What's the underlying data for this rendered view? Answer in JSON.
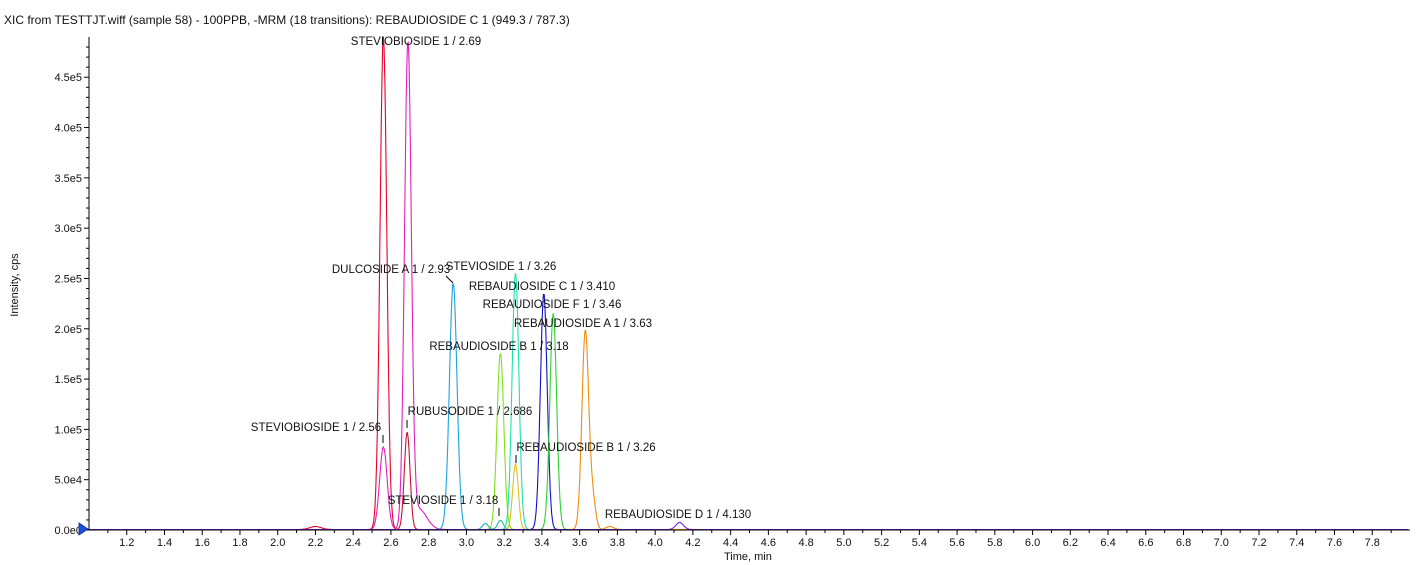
{
  "title": "XIC from TESTTJT.wiff (sample 58) - 100PPB, -MRM (18 transitions): REBAUDIOSIDE C 1 (949.3 / 787.3)",
  "chart_data": {
    "type": "line",
    "xlabel": "Time, min",
    "ylabel": "Intensity, cps",
    "xlim": [
      1.0,
      8.0
    ],
    "ylim": [
      0,
      490000
    ],
    "x_ticks": [
      "1.2",
      "1.4",
      "1.6",
      "1.8",
      "2.0",
      "2.2",
      "2.4",
      "2.6",
      "2.8",
      "3.0",
      "3.2",
      "3.4",
      "3.6",
      "3.8",
      "4.0",
      "4.2",
      "4.4",
      "4.6",
      "4.8",
      "5.0",
      "5.2",
      "5.4",
      "5.6",
      "5.8",
      "6.0",
      "6.2",
      "6.4",
      "6.6",
      "6.8",
      "7.0",
      "7.2",
      "7.4",
      "7.6",
      "7.8"
    ],
    "y_ticks": [
      {
        "value": 0,
        "label": "0.0e0"
      },
      {
        "value": 50000,
        "label": "5.0e4"
      },
      {
        "value": 100000,
        "label": "1.0e5"
      },
      {
        "value": 150000,
        "label": "1.5e5"
      },
      {
        "value": 200000,
        "label": "2.0e5"
      },
      {
        "value": 250000,
        "label": "2.5e5"
      },
      {
        "value": 300000,
        "label": "3.0e5"
      },
      {
        "value": 350000,
        "label": "3.5e5"
      },
      {
        "value": 400000,
        "label": "4.0e5"
      },
      {
        "value": 450000,
        "label": "4.5e5"
      }
    ],
    "grid": false,
    "series": [
      {
        "color": "#e8002a",
        "peaks": [
          {
            "rt": 2.56,
            "height": 490000,
            "width": 0.018
          },
          {
            "rt": 2.2,
            "height": 3000,
            "width": 0.03
          }
        ]
      },
      {
        "color": "#e020c0",
        "peaks": [
          {
            "rt": 2.69,
            "height": 480000,
            "width": 0.018
          },
          {
            "rt": 2.56,
            "height": 82000,
            "width": 0.02
          },
          {
            "rt": 2.75,
            "height": 20000,
            "width": 0.04
          }
        ]
      },
      {
        "color": "#c8102e",
        "peaks": [
          {
            "rt": 2.686,
            "height": 97000,
            "width": 0.015
          }
        ]
      },
      {
        "color": "#1aa3e0",
        "peaks": [
          {
            "rt": 2.93,
            "height": 245000,
            "width": 0.02
          }
        ]
      },
      {
        "color": "#7fe020",
        "peaks": [
          {
            "rt": 3.18,
            "height": 175000,
            "width": 0.018
          }
        ]
      },
      {
        "color": "#22b5a0",
        "peaks": [
          {
            "rt": 3.18,
            "height": 9000,
            "width": 0.015
          },
          {
            "rt": 3.1,
            "height": 6000,
            "width": 0.015
          }
        ]
      },
      {
        "color": "#20e0b0",
        "peaks": [
          {
            "rt": 3.26,
            "height": 255000,
            "width": 0.018
          }
        ]
      },
      {
        "color": "#e0c020",
        "peaks": [
          {
            "rt": 3.26,
            "height": 65000,
            "width": 0.015
          }
        ]
      },
      {
        "color": "#1010c8",
        "peaks": [
          {
            "rt": 3.41,
            "height": 235000,
            "width": 0.018
          }
        ]
      },
      {
        "color": "#30d030",
        "peaks": [
          {
            "rt": 3.46,
            "height": 215000,
            "width": 0.018
          }
        ]
      },
      {
        "color": "#f08c10",
        "peaks": [
          {
            "rt": 3.63,
            "height": 198000,
            "width": 0.018
          },
          {
            "rt": 3.67,
            "height": 28000,
            "width": 0.015
          },
          {
            "rt": 3.76,
            "height": 3000,
            "width": 0.02
          }
        ]
      },
      {
        "color": "#7a20d8",
        "peaks": [
          {
            "rt": 4.13,
            "height": 7000,
            "width": 0.02
          }
        ]
      }
    ],
    "annotations": [
      {
        "text": "STEVIOBIOSIDE 1 / 2.69",
        "x": 2.69,
        "y": 480000
      },
      {
        "text": "DULCOSIDE A 1 / 2.93",
        "x": 2.93,
        "y": 245000
      },
      {
        "text": "STEVIOSIDE 1 / 3.26",
        "x": 3.26,
        "y": 255000
      },
      {
        "text": "REBAUDIOSIDE C 1 / 3.410",
        "x": 3.41,
        "y": 235000
      },
      {
        "text": "REBAUDIOSIDE F 1 / 3.46",
        "x": 3.46,
        "y": 215000
      },
      {
        "text": "REBAUDIOSIDE A 1 / 3.63",
        "x": 3.63,
        "y": 198000
      },
      {
        "text": "REBAUDIOSIDE B 1 / 3.18",
        "x": 3.18,
        "y": 175000
      },
      {
        "text": "RUBUSODIDE 1 / 2.686",
        "x": 2.686,
        "y": 97000
      },
      {
        "text": "STEVIOBIOSIDE 1 / 2.56",
        "x": 2.56,
        "y": 82000
      },
      {
        "text": "REBAUDIOSIDE B 1 / 3.26",
        "x": 3.26,
        "y": 65000
      },
      {
        "text": "STEVIOSIDE 1 / 3.18",
        "x": 3.18,
        "y": 9000
      },
      {
        "text": "REBAUDIOSIDE D 1 / 4.130",
        "x": 4.13,
        "y": 7000
      }
    ]
  }
}
